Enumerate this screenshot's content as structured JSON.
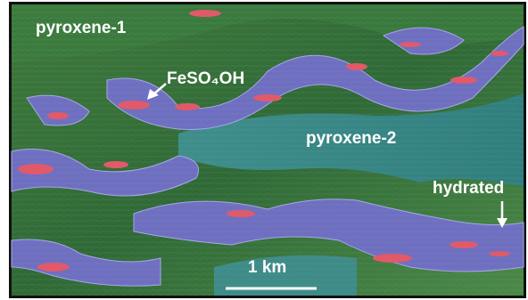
{
  "labels": [
    "pyroxene-1",
    "FeSO₄OH",
    "pyroxene-2",
    "hydrated"
  ],
  "scale_bar": {
    "label": "1 km"
  }
}
